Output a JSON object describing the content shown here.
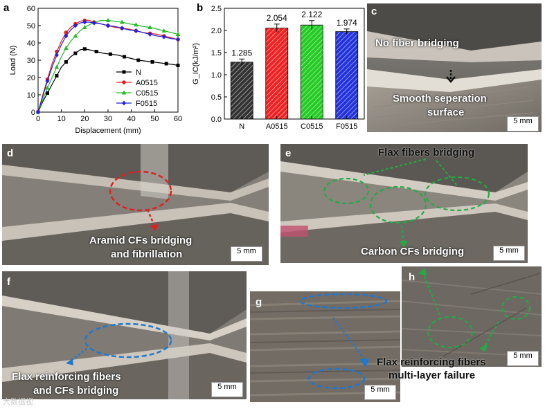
{
  "chart_data": [
    {
      "panel": "a",
      "type": "line",
      "xlabel": "Displacement (mm)",
      "ylabel": "Load (N)",
      "xlim": [
        0,
        60
      ],
      "ylim": [
        0,
        60
      ],
      "xticks": [
        "0",
        "10",
        "20",
        "30",
        "40",
        "50",
        "60"
      ],
      "yticks": [
        "0",
        "10",
        "20",
        "30",
        "40",
        "50",
        "60"
      ],
      "legend_position": "center-right",
      "series": [
        {
          "name": "N",
          "color": "#000000",
          "marker": "square",
          "x": [
            0,
            2,
            4,
            6,
            8,
            10,
            12,
            14,
            16,
            18,
            20,
            22,
            25,
            28,
            31,
            34,
            37,
            40,
            43,
            46,
            49,
            52,
            55,
            58,
            60
          ],
          "y": [
            0,
            6,
            11,
            16,
            21,
            26,
            29,
            32,
            34,
            36,
            36.5,
            36,
            35,
            34,
            33.5,
            33,
            32,
            31,
            30,
            29.5,
            29,
            28.5,
            28,
            27.5,
            27
          ]
        },
        {
          "name": "A0515",
          "color": "#e02020",
          "marker": "circle",
          "x": [
            0,
            2,
            4,
            6,
            8,
            10,
            12,
            14,
            16,
            18,
            20,
            22,
            24,
            27,
            30,
            33,
            36,
            39,
            42,
            45,
            48,
            51,
            54,
            57,
            60
          ],
          "y": [
            0,
            10,
            19,
            28,
            35,
            41,
            46,
            49,
            51,
            52.5,
            53,
            53,
            52,
            51,
            50,
            49,
            48.5,
            48,
            47,
            46,
            45.5,
            45,
            44,
            43,
            42
          ]
        },
        {
          "name": "C0515",
          "color": "#22bb22",
          "marker": "triangle",
          "x": [
            0,
            2,
            4,
            6,
            8,
            10,
            12,
            14,
            16,
            18,
            20,
            22,
            24,
            27,
            30,
            33,
            36,
            39,
            42,
            45,
            48,
            51,
            54,
            57,
            60
          ],
          "y": [
            0,
            7,
            14,
            20,
            26,
            32,
            37,
            41,
            44,
            47,
            49,
            50.5,
            52,
            53,
            53,
            52.5,
            52,
            51,
            50.5,
            49.5,
            49,
            48,
            47,
            46,
            45
          ]
        },
        {
          "name": "F0515",
          "color": "#2222dd",
          "marker": "diamond",
          "x": [
            0,
            2,
            4,
            6,
            8,
            10,
            12,
            14,
            16,
            18,
            20,
            22,
            24,
            27,
            30,
            33,
            36,
            39,
            42,
            45,
            48,
            51,
            54,
            57,
            60
          ],
          "y": [
            0,
            9,
            18,
            26,
            33,
            39,
            44,
            47.5,
            50,
            51.5,
            52,
            52,
            51.5,
            51,
            50,
            49.5,
            48.5,
            47.5,
            47,
            46,
            45,
            44,
            43.5,
            42.5,
            42
          ]
        }
      ]
    },
    {
      "panel": "b",
      "type": "bar",
      "ylabel": "G_IC(kJ/m²)",
      "ylim": [
        0,
        2.5
      ],
      "yticks": [
        "0.0",
        "0.5",
        "1.0",
        "1.5",
        "2.0",
        "2.5"
      ],
      "categories": [
        "N",
        "A0515",
        "C0515",
        "F0515"
      ],
      "values": [
        1.285,
        2.054,
        2.122,
        1.974
      ],
      "value_labels": [
        "1.285",
        "2.054",
        "2.122",
        "1.974"
      ],
      "errors": [
        0.07,
        0.09,
        0.1,
        0.06
      ],
      "colors": [
        "#333333",
        "#ee2222",
        "#22cc22",
        "#2233dd"
      ],
      "pattern": "diagonal-hatch"
    }
  ],
  "panels": {
    "a": {
      "label": "a"
    },
    "b": {
      "label": "b"
    },
    "c": {
      "label": "c",
      "captions": [
        "No fiber bridging",
        "Smooth seperation",
        "surface"
      ],
      "scale": "5 mm"
    },
    "d": {
      "label": "d",
      "captions": [
        "Aramid CFs bridging",
        "and fibrillation"
      ],
      "scale": "5 mm"
    },
    "e": {
      "label": "e",
      "captions": [
        "Flax fibers bridging",
        "Carbon CFs bridging"
      ],
      "scale": "5 mm"
    },
    "f": {
      "label": "f",
      "captions": [
        "Flax reinforcing fibers",
        "and CFs bridging"
      ],
      "scale": "5 mm"
    },
    "g": {
      "label": "g",
      "scale": "5 mm"
    },
    "h": {
      "label": "h",
      "captions": [
        "Flax reinforcing fibers",
        "multi-layer failure"
      ],
      "scale": "5 mm"
    }
  },
  "watermark": "大数据视",
  "colors": {
    "annot_red": "#e02020",
    "annot_green": "#22aa44",
    "annot_blue": "#2277cc"
  }
}
